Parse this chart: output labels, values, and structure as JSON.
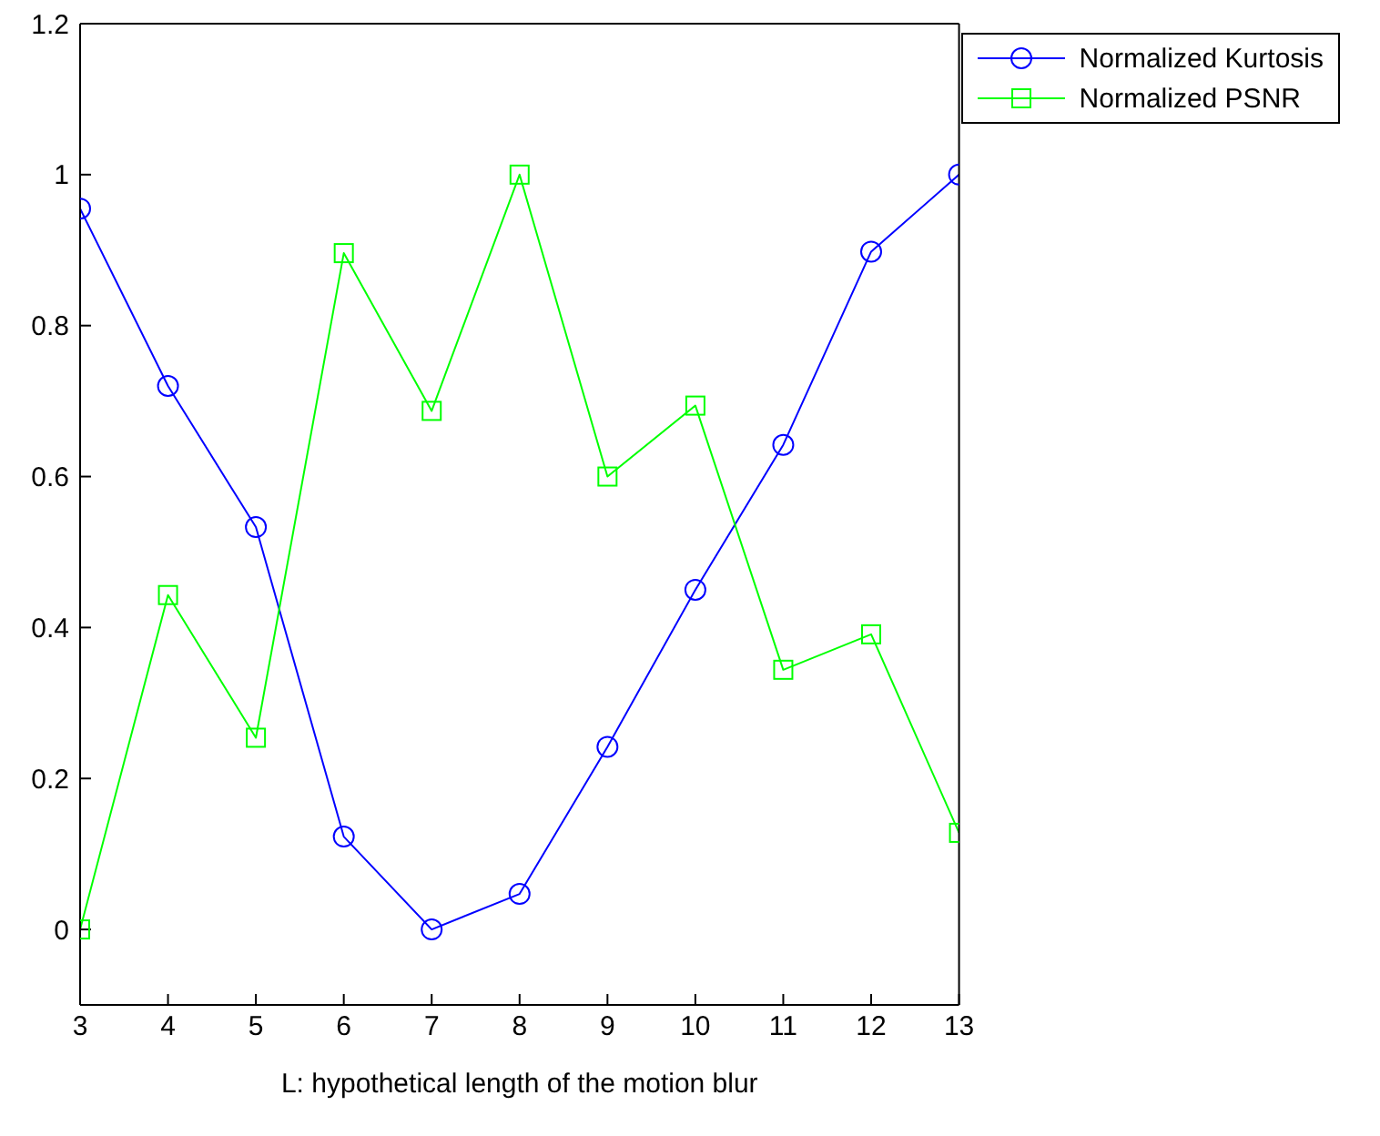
{
  "chart_data": {
    "type": "line",
    "xlabel": "L: hypothetical length of the motion blur",
    "x": [
      3,
      4,
      5,
      6,
      7,
      8,
      9,
      10,
      11,
      12,
      13
    ],
    "xlim": [
      3,
      13
    ],
    "xticks": [
      3,
      4,
      5,
      6,
      7,
      8,
      9,
      10,
      11,
      12,
      13
    ],
    "ylim": [
      -0.1,
      1.2
    ],
    "yticks": [
      0,
      0.2,
      0.4,
      0.6,
      0.8,
      1,
      1.2
    ],
    "grid": false,
    "legend": "top right",
    "line_style": "solid",
    "series": [
      {
        "name": "Normalized Kurtosis",
        "color": "#0000ff",
        "marker": "circle",
        "values": [
          0.955,
          0.72,
          0.533,
          0.123,
          0,
          0.047,
          0.242,
          0.45,
          0.642,
          0.898,
          1
        ]
      },
      {
        "name": "Normalized PSNR",
        "color": "#00ff00",
        "marker": "square",
        "values": [
          0,
          0.443,
          0.254,
          0.896,
          0.687,
          1,
          0.6,
          0.694,
          0.344,
          0.391,
          0.128
        ]
      }
    ]
  }
}
